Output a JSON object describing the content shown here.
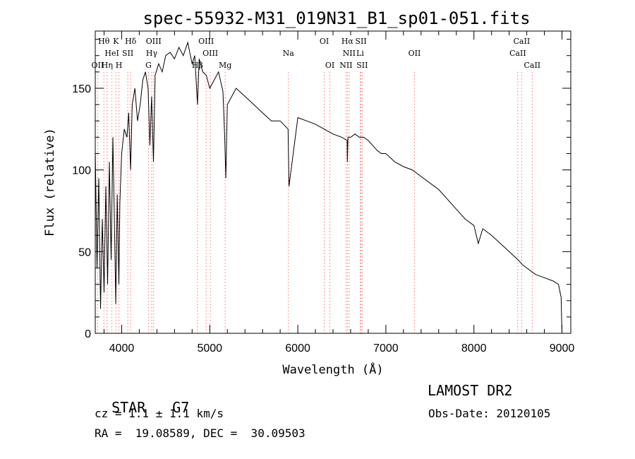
{
  "chart_data": {
    "type": "line",
    "title": "spec-55932-M31_019N31_B1_sp01-051.fits",
    "xlabel": "Wavelength (Å)",
    "ylabel": "Flux (relative)",
    "xlim": [
      3700,
      9100
    ],
    "ylim": [
      0,
      185
    ],
    "xticks": [
      4000,
      5000,
      6000,
      7000,
      8000,
      9000
    ],
    "yticks": [
      0,
      50,
      100,
      150
    ],
    "grid": false,
    "series": [
      {
        "x": [
          3700,
          3720,
          3740,
          3760,
          3780,
          3800,
          3820,
          3840,
          3860,
          3880,
          3900,
          3920,
          3933,
          3950,
          3968,
          3980,
          4000,
          4030,
          4060,
          4080,
          4101,
          4120,
          4150,
          4180,
          4210,
          4240,
          4270,
          4300,
          4320,
          4340,
          4361,
          4380,
          4420,
          4460,
          4500,
          4550,
          4600,
          4650,
          4700,
          4750,
          4800,
          4830,
          4861,
          4880,
          4920,
          4960,
          5000,
          5050,
          5100,
          5150,
          5170,
          5183,
          5200,
          5250,
          5300,
          5400,
          5500,
          5600,
          5700,
          5800,
          5890,
          5900,
          6000,
          6100,
          6200,
          6300,
          6400,
          6500,
          6560,
          6563,
          6570,
          6600,
          6650,
          6700,
          6750,
          6800,
          6850,
          6900,
          6950,
          7000,
          7100,
          7200,
          7300,
          7400,
          7500,
          7600,
          7700,
          7800,
          7900,
          8000,
          8050,
          8100,
          8200,
          8300,
          8400,
          8500,
          8550,
          8600,
          8700,
          8800,
          8900,
          8960,
          8990,
          9000
        ],
        "y": [
          112,
          40,
          95,
          15,
          70,
          25,
          90,
          30,
          105,
          45,
          120,
          60,
          18,
          85,
          30,
          80,
          110,
          125,
          120,
          135,
          100,
          140,
          150,
          130,
          140,
          155,
          160,
          150,
          115,
          145,
          105,
          158,
          165,
          160,
          170,
          172,
          168,
          175,
          170,
          178,
          165,
          170,
          140,
          168,
          160,
          158,
          150,
          155,
          160,
          148,
          120,
          95,
          140,
          145,
          150,
          145,
          140,
          135,
          130,
          130,
          125,
          90,
          132,
          130,
          128,
          125,
          122,
          120,
          118,
          105,
          120,
          120,
          122,
          120,
          120,
          118,
          115,
          112,
          110,
          110,
          105,
          102,
          100,
          96,
          92,
          88,
          82,
          76,
          70,
          66,
          55,
          64,
          60,
          55,
          50,
          45,
          42,
          40,
          36,
          34,
          32,
          30,
          22,
          0
        ]
      }
    ],
    "lines": [
      {
        "name": "Hθ",
        "x": 3798
      },
      {
        "name": "K",
        "x": 3934
      },
      {
        "name": "Hδ",
        "x": 4102
      },
      {
        "name": "OIII",
        "x": 4363
      },
      {
        "name": "OIII",
        "x": 4959
      },
      {
        "name": "OI",
        "x": 6300
      },
      {
        "name": "Hα",
        "x": 6563
      },
      {
        "name": "SII",
        "x": 6717
      },
      {
        "name": "CaII",
        "x": 8542
      },
      {
        "name": "HeI",
        "x": 3889
      },
      {
        "name": "SII",
        "x": 4069
      },
      {
        "name": "Hγ",
        "x": 4341
      },
      {
        "name": "OIII",
        "x": 5007
      },
      {
        "name": "Na",
        "x": 5893
      },
      {
        "name": "NII",
        "x": 6583
      },
      {
        "name": "Li",
        "x": 6708
      },
      {
        "name": "OII",
        "x": 7325
      },
      {
        "name": "CaII",
        "x": 8498
      },
      {
        "name": "OII",
        "x": 3727
      },
      {
        "name": "Hη",
        "x": 3835
      },
      {
        "name": "H",
        "x": 3969
      },
      {
        "name": "G",
        "x": 4305
      },
      {
        "name": "Hβ",
        "x": 4861
      },
      {
        "name": "Mg",
        "x": 5175
      },
      {
        "name": "OI",
        "x": 6364
      },
      {
        "name": "NII",
        "x": 6548
      },
      {
        "name": "SII",
        "x": 6731
      },
      {
        "name": "CaII",
        "x": 8662
      }
    ]
  },
  "info": {
    "object_class": "STAR",
    "subclass": "G7",
    "survey": "LAMOST DR2",
    "redshift": "cz = 1.1 ± 1.1 km/s",
    "obs_date": "Obs-Date: 20120105",
    "coords": "RA =  19.08589, DEC =  30.09503"
  }
}
